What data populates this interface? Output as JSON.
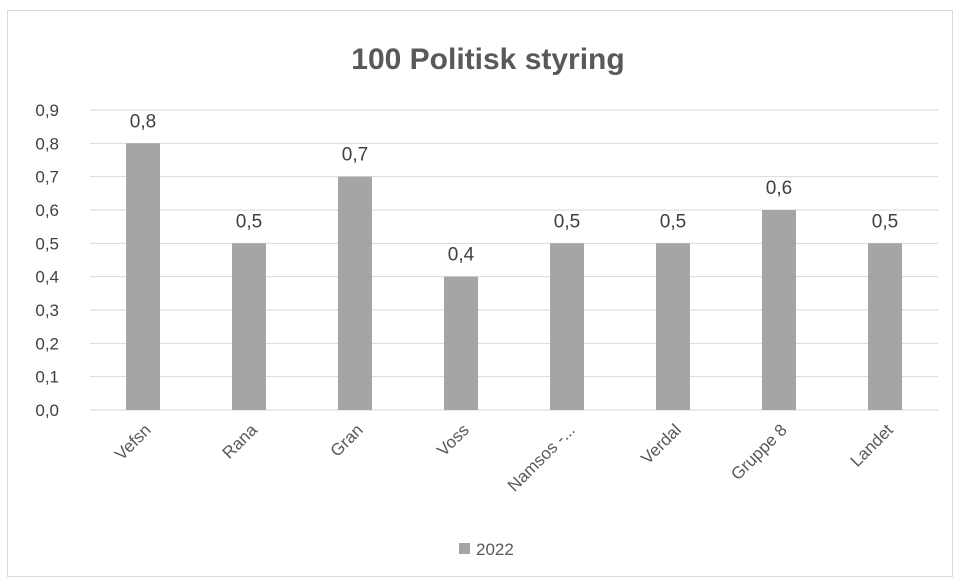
{
  "chart_data": {
    "type": "bar",
    "title": "100 Politisk styring",
    "categories": [
      "Vefsn",
      "Rana",
      "Gran",
      "Voss",
      "Namsos -...",
      "Verdal",
      "Gruppe 8",
      "Landet"
    ],
    "series": [
      {
        "name": "2022",
        "values": [
          0.8,
          0.5,
          0.7,
          0.4,
          0.5,
          0.5,
          0.6,
          0.5
        ]
      }
    ],
    "data_labels": [
      "0,8",
      "0,5",
      "0,7",
      "0,4",
      "0,5",
      "0,5",
      "0,6",
      "0,5"
    ],
    "y_ticks": [
      "0,0",
      "0,1",
      "0,2",
      "0,3",
      "0,4",
      "0,5",
      "0,6",
      "0,7",
      "0,8",
      "0,9"
    ],
    "ylim": [
      0,
      0.9
    ],
    "grid": true,
    "legend_position": "bottom",
    "colors": {
      "bar": "#a5a5a5",
      "grid": "#d9d9d9",
      "axis": "#d9d9d9"
    }
  }
}
